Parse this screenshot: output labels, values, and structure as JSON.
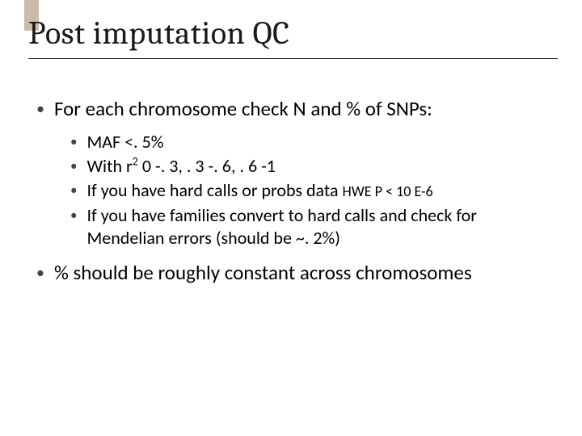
{
  "accent_color": "#c9bba8",
  "title": "Post imputation QC",
  "bullets": {
    "b1": "For each chromosome check N and % of SNPs:",
    "sub": {
      "s1": "MAF <. 5%",
      "s2_a": "With r",
      "s2_b": " 0 -. 3, . 3 -. 6, . 6 -1",
      "s3_a": "If you have hard calls or probs data  ",
      "s3_b": "HWE P < 10 E-6",
      "s4": "If you have families convert to hard calls and check for Mendelian errors (should be ~. 2%)"
    },
    "b2": "% should be roughly constant across chromosomes"
  }
}
